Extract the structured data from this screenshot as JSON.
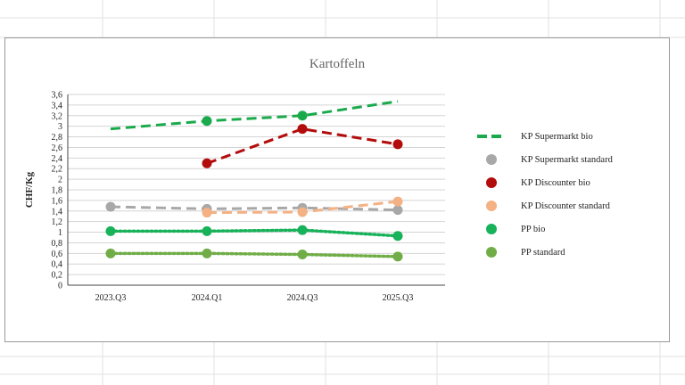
{
  "chart_data": {
    "type": "line",
    "title": "Kartoffeln",
    "xlabel": "",
    "ylabel": "CHF/Kg",
    "categories": [
      "2023.Q3",
      "2024.Q1",
      "2024.Q3",
      "2025.Q3"
    ],
    "ylim": [
      0,
      3.6
    ],
    "yticks": [
      "0",
      "0,2",
      "0,4",
      "0,6",
      "0,8",
      "1",
      "1,2",
      "1,4",
      "1,6",
      "1,8",
      "2",
      "2,2",
      "2,4",
      "2,6",
      "2,8",
      "3",
      "3,2",
      "3,4",
      "3,6"
    ],
    "grid": true,
    "legend_position": "right",
    "series": [
      {
        "name": "KP Supermarkt bio",
        "values": [
          2.95,
          3.1,
          3.2,
          3.47
        ],
        "color": "#1aaa4c",
        "dash": "dashed",
        "markers": false
      },
      {
        "name": "KP Supermarkt standard",
        "values": [
          1.48,
          1.44,
          1.46,
          1.42
        ],
        "color": "#a8a8a8",
        "dash": "dashed",
        "markers": true
      },
      {
        "name": "KP Discounter bio",
        "values": [
          null,
          2.3,
          2.95,
          2.66
        ],
        "color": "#b30c0c",
        "dash": "dashed",
        "markers": true
      },
      {
        "name": "KP Discounter standard",
        "values": [
          null,
          1.37,
          1.38,
          1.58
        ],
        "color": "#f4b183",
        "dash": "dashed",
        "markers": true
      },
      {
        "name": "PP bio",
        "values": [
          1.02,
          1.02,
          1.04,
          0.93
        ],
        "color": "#17b25a",
        "dash": "dotted",
        "markers": true
      },
      {
        "name": "PP standard",
        "values": [
          0.6,
          0.6,
          0.58,
          0.54
        ],
        "color": "#70ad47",
        "dash": "dotted",
        "markers": true
      }
    ]
  }
}
